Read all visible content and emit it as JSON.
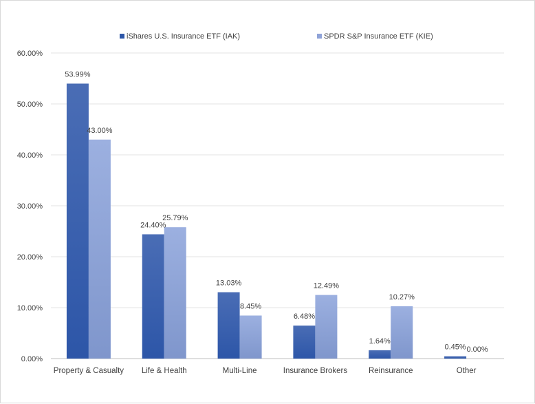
{
  "chart_data": {
    "type": "bar",
    "title": "",
    "xlabel": "",
    "ylabel": "",
    "categories": [
      "Property & Casualty",
      "Life & Health",
      "Multi-Line",
      "Insurance Brokers",
      "Reinsurance",
      "Other"
    ],
    "series": [
      {
        "name": "iShares U.S. Insurance ETF (IAK)",
        "values": [
          53.99,
          24.4,
          13.03,
          6.48,
          1.64,
          0.45
        ],
        "labels": [
          "53.99%",
          "24.40%",
          "13.03%",
          "6.48%",
          "1.64%",
          "0.45%"
        ],
        "color": "#3a5ea8"
      },
      {
        "name": "SPDR S&P Insurance ETF (KIE)",
        "values": [
          43.0,
          25.79,
          8.45,
          12.49,
          10.27,
          0.0
        ],
        "labels": [
          "43.00%",
          "25.79%",
          "8.45%",
          "12.49%",
          "10.27%",
          "0.00%"
        ],
        "color": "#8fa3d8"
      }
    ],
    "ylim": [
      0,
      60
    ],
    "yticks": [
      "0.00%",
      "10.00%",
      "20.00%",
      "30.00%",
      "40.00%",
      "50.00%",
      "60.00%"
    ],
    "grid": true,
    "legend_position": "top-center"
  }
}
